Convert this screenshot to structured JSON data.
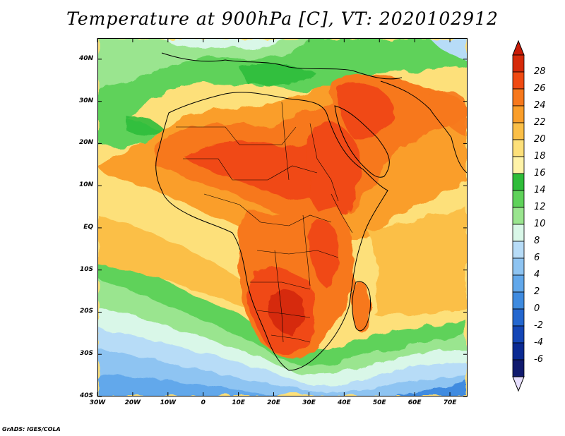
{
  "title": "Temperature at 900hPa [C], VT: 2020102912",
  "credit": "GrADS: IGES/COLA",
  "map": {
    "projection": "lat-lon",
    "lon_range": [
      -30,
      75
    ],
    "lat_range": [
      -40,
      45
    ],
    "lat_ticks": [
      {
        "value": 40,
        "label": "40N"
      },
      {
        "value": 30,
        "label": "30N"
      },
      {
        "value": 20,
        "label": "20N"
      },
      {
        "value": 10,
        "label": "10N"
      },
      {
        "value": 0,
        "label": "EQ"
      },
      {
        "value": -10,
        "label": "10S"
      },
      {
        "value": -20,
        "label": "20S"
      },
      {
        "value": -30,
        "label": "30S"
      },
      {
        "value": -40,
        "label": "40S"
      }
    ],
    "lon_ticks": [
      {
        "value": -30,
        "label": "30W"
      },
      {
        "value": -20,
        "label": "20W"
      },
      {
        "value": -10,
        "label": "10W"
      },
      {
        "value": 0,
        "label": "0"
      },
      {
        "value": 10,
        "label": "10E"
      },
      {
        "value": 20,
        "label": "20E"
      },
      {
        "value": 30,
        "label": "30E"
      },
      {
        "value": 40,
        "label": "40E"
      },
      {
        "value": 50,
        "label": "50E"
      },
      {
        "value": 60,
        "label": "60E"
      },
      {
        "value": 70,
        "label": "70E"
      }
    ]
  },
  "colorbar": {
    "levels": [
      "28",
      "26",
      "24",
      "22",
      "20",
      "18",
      "16",
      "14",
      "12",
      "10",
      "8",
      "6",
      "4",
      "2",
      "0",
      "-2",
      "-4",
      "-6"
    ],
    "colors": [
      "#d62a0a",
      "#f04a12",
      "#f7781c",
      "#fa9e2a",
      "#fbbf47",
      "#fde07a",
      "#fff3a8",
      "#2fbd3a",
      "#5fd25a",
      "#9ae58f",
      "#d9f7e8",
      "#b7dcf7",
      "#8ec4f2",
      "#62a8eb",
      "#3f8be0",
      "#2467cf",
      "#1446b6",
      "#0b2a93",
      "#101a6e"
    ],
    "over_color": "#c81a06",
    "under_color": "#e8e0ff"
  }
}
